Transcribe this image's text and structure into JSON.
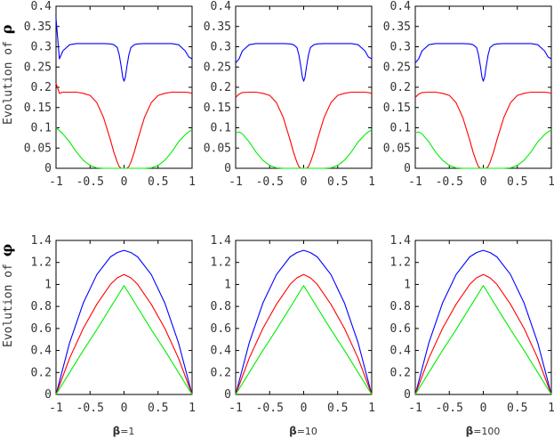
{
  "figure": {
    "row_labels": [
      {
        "prefix": "Evolution of ",
        "symbol": "ρ"
      },
      {
        "prefix": "Evolution of ",
        "symbol": "φ"
      }
    ],
    "column_labels": [
      {
        "symbol": "β",
        "value": "=1"
      },
      {
        "symbol": "β",
        "value": "=10"
      },
      {
        "symbol": "β",
        "value": "=100"
      }
    ],
    "colors": {
      "blue": "#0000ff",
      "red": "#ff0000",
      "green": "#00ee00",
      "frame": "#000000",
      "text": "#333333"
    }
  },
  "chart_data": [
    {
      "type": "line",
      "title": "",
      "xlabel": "",
      "ylabel": "Evolution of ρ",
      "xlim": [
        -1,
        1
      ],
      "ylim": [
        0,
        0.4
      ],
      "xticks": [
        "-1",
        "-0.5",
        "0",
        "0.5",
        "1"
      ],
      "yticks": [
        "0",
        "0.05",
        "0.1",
        "0.15",
        "0.2",
        "0.25",
        "0.3",
        "0.35",
        "0.4"
      ],
      "x": [
        -1,
        -0.95,
        -0.9,
        -0.8,
        -0.7,
        -0.6,
        -0.5,
        -0.4,
        -0.3,
        -0.2,
        -0.15,
        -0.1,
        -0.07,
        -0.04,
        -0.02,
        0,
        0.02,
        0.04,
        0.07,
        0.1,
        0.15,
        0.2,
        0.3,
        0.4,
        0.5,
        0.6,
        0.7,
        0.8,
        0.9,
        0.95,
        1
      ],
      "series": [
        {
          "color": "blue",
          "values": [
            0.37,
            0.27,
            0.29,
            0.305,
            0.308,
            0.308,
            0.308,
            0.308,
            0.308,
            0.307,
            0.305,
            0.298,
            0.28,
            0.25,
            0.225,
            0.215,
            0.225,
            0.25,
            0.28,
            0.298,
            0.305,
            0.307,
            0.308,
            0.308,
            0.308,
            0.308,
            0.308,
            0.305,
            0.29,
            0.275,
            0.27
          ]
        },
        {
          "color": "red",
          "values": [
            0.21,
            0.185,
            0.188,
            0.188,
            0.188,
            0.185,
            0.18,
            0.162,
            0.125,
            0.07,
            0.04,
            0.015,
            0.004,
            0,
            0,
            0,
            0,
            0,
            0.004,
            0.015,
            0.04,
            0.07,
            0.125,
            0.162,
            0.18,
            0.185,
            0.188,
            0.188,
            0.188,
            0.187,
            0.185
          ]
        },
        {
          "color": "green",
          "values": [
            0.1,
            0.093,
            0.085,
            0.065,
            0.04,
            0.02,
            0.007,
            0.001,
            0,
            0,
            0,
            0,
            0,
            0,
            0,
            0,
            0,
            0,
            0,
            0,
            0,
            0,
            0,
            0.001,
            0.007,
            0.02,
            0.04,
            0.065,
            0.083,
            0.09,
            0.095
          ]
        }
      ]
    },
    {
      "type": "line",
      "title": "",
      "xlabel": "",
      "ylabel": "",
      "xlim": [
        -1,
        1
      ],
      "ylim": [
        0,
        0.4
      ],
      "xticks": [
        "-1",
        "-0.5",
        "0",
        "0.5",
        "1"
      ],
      "yticks": [
        "0",
        "0.05",
        "0.1",
        "0.15",
        "0.2",
        "0.25",
        "0.3",
        "0.35",
        "0.4"
      ],
      "x": [
        -1,
        -0.95,
        -0.9,
        -0.8,
        -0.7,
        -0.6,
        -0.5,
        -0.4,
        -0.3,
        -0.2,
        -0.15,
        -0.1,
        -0.07,
        -0.04,
        -0.02,
        0,
        0.02,
        0.04,
        0.07,
        0.1,
        0.15,
        0.2,
        0.3,
        0.4,
        0.5,
        0.6,
        0.7,
        0.8,
        0.9,
        0.95,
        1
      ],
      "series": [
        {
          "color": "blue",
          "values": [
            0.26,
            0.27,
            0.29,
            0.305,
            0.308,
            0.308,
            0.308,
            0.308,
            0.308,
            0.307,
            0.305,
            0.298,
            0.28,
            0.25,
            0.225,
            0.215,
            0.225,
            0.25,
            0.28,
            0.298,
            0.305,
            0.307,
            0.308,
            0.308,
            0.308,
            0.308,
            0.308,
            0.305,
            0.29,
            0.275,
            0.27
          ]
        },
        {
          "color": "red",
          "values": [
            0.175,
            0.183,
            0.187,
            0.188,
            0.188,
            0.185,
            0.18,
            0.162,
            0.125,
            0.07,
            0.04,
            0.015,
            0.004,
            0,
            0,
            0,
            0,
            0,
            0.004,
            0.015,
            0.04,
            0.07,
            0.125,
            0.162,
            0.18,
            0.185,
            0.188,
            0.188,
            0.188,
            0.187,
            0.185
          ]
        },
        {
          "color": "green",
          "values": [
            0.087,
            0.09,
            0.085,
            0.065,
            0.04,
            0.02,
            0.007,
            0.001,
            0,
            0,
            0,
            0,
            0,
            0,
            0,
            0,
            0,
            0,
            0,
            0,
            0,
            0,
            0,
            0.001,
            0.007,
            0.02,
            0.04,
            0.065,
            0.083,
            0.09,
            0.095
          ]
        }
      ]
    },
    {
      "type": "line",
      "title": "",
      "xlabel": "",
      "ylabel": "",
      "xlim": [
        -1,
        1
      ],
      "ylim": [
        0,
        0.4
      ],
      "xticks": [
        "-1",
        "-0.5",
        "0",
        "0.5",
        "1"
      ],
      "yticks": [
        "0",
        "0.05",
        "0.1",
        "0.15",
        "0.2",
        "0.25",
        "0.3",
        "0.35",
        "0.4"
      ],
      "x": [
        -1,
        -0.95,
        -0.9,
        -0.8,
        -0.7,
        -0.6,
        -0.5,
        -0.4,
        -0.3,
        -0.2,
        -0.15,
        -0.1,
        -0.07,
        -0.04,
        -0.02,
        0,
        0.02,
        0.04,
        0.07,
        0.1,
        0.15,
        0.2,
        0.3,
        0.4,
        0.5,
        0.6,
        0.7,
        0.8,
        0.9,
        0.95,
        1
      ],
      "series": [
        {
          "color": "blue",
          "values": [
            0.26,
            0.27,
            0.29,
            0.305,
            0.308,
            0.308,
            0.308,
            0.308,
            0.308,
            0.307,
            0.305,
            0.298,
            0.28,
            0.25,
            0.225,
            0.215,
            0.225,
            0.25,
            0.28,
            0.298,
            0.305,
            0.307,
            0.308,
            0.308,
            0.308,
            0.308,
            0.308,
            0.305,
            0.29,
            0.275,
            0.27
          ]
        },
        {
          "color": "red",
          "values": [
            0.175,
            0.183,
            0.187,
            0.188,
            0.188,
            0.185,
            0.18,
            0.162,
            0.125,
            0.07,
            0.04,
            0.015,
            0.004,
            0,
            0,
            0,
            0,
            0,
            0.004,
            0.015,
            0.04,
            0.07,
            0.125,
            0.162,
            0.18,
            0.185,
            0.188,
            0.188,
            0.188,
            0.187,
            0.185
          ]
        },
        {
          "color": "green",
          "values": [
            0.087,
            0.09,
            0.085,
            0.065,
            0.04,
            0.02,
            0.007,
            0.001,
            0,
            0,
            0,
            0,
            0,
            0,
            0,
            0,
            0,
            0,
            0,
            0,
            0,
            0,
            0,
            0.001,
            0.007,
            0.02,
            0.04,
            0.065,
            0.083,
            0.09,
            0.095
          ]
        }
      ]
    },
    {
      "type": "line",
      "title": "",
      "xlabel": "β=1",
      "ylabel": "Evolution of φ",
      "xlim": [
        -1,
        1
      ],
      "ylim": [
        0,
        1.4
      ],
      "xticks": [
        "-1",
        "-0.5",
        "0",
        "0.5",
        "1"
      ],
      "yticks": [
        "0",
        "0.2",
        "0.4",
        "0.6",
        "0.8",
        "1",
        "1.2",
        "1.4"
      ],
      "x": [
        -1,
        -0.8,
        -0.6,
        -0.4,
        -0.2,
        -0.1,
        0,
        0.1,
        0.2,
        0.4,
        0.6,
        0.8,
        1
      ],
      "series": [
        {
          "color": "blue",
          "values": [
            0,
            0.47,
            0.83,
            1.09,
            1.25,
            1.29,
            1.31,
            1.29,
            1.25,
            1.09,
            0.83,
            0.47,
            0
          ]
        },
        {
          "color": "red",
          "values": [
            0,
            0.33,
            0.6,
            0.82,
            1.0,
            1.06,
            1.09,
            1.06,
            1.0,
            0.82,
            0.6,
            0.33,
            0
          ]
        },
        {
          "color": "green",
          "values": [
            0,
            0.2,
            0.4,
            0.59,
            0.79,
            0.89,
            0.99,
            0.89,
            0.79,
            0.59,
            0.4,
            0.2,
            0
          ]
        }
      ]
    },
    {
      "type": "line",
      "title": "",
      "xlabel": "β=10",
      "ylabel": "",
      "xlim": [
        -1,
        1
      ],
      "ylim": [
        0,
        1.4
      ],
      "xticks": [
        "-1",
        "-0.5",
        "0",
        "0.5",
        "1"
      ],
      "yticks": [
        "0",
        "0.2",
        "0.4",
        "0.6",
        "0.8",
        "1",
        "1.2",
        "1.4"
      ],
      "x": [
        -1,
        -0.8,
        -0.6,
        -0.4,
        -0.2,
        -0.1,
        0,
        0.1,
        0.2,
        0.4,
        0.6,
        0.8,
        1
      ],
      "series": [
        {
          "color": "blue",
          "values": [
            0,
            0.47,
            0.83,
            1.09,
            1.25,
            1.29,
            1.31,
            1.29,
            1.25,
            1.09,
            0.83,
            0.47,
            0
          ]
        },
        {
          "color": "red",
          "values": [
            0,
            0.33,
            0.6,
            0.82,
            1.0,
            1.06,
            1.09,
            1.06,
            1.0,
            0.82,
            0.6,
            0.33,
            0
          ]
        },
        {
          "color": "green",
          "values": [
            0,
            0.2,
            0.4,
            0.59,
            0.79,
            0.89,
            0.99,
            0.89,
            0.79,
            0.59,
            0.4,
            0.2,
            0
          ]
        }
      ]
    },
    {
      "type": "line",
      "title": "",
      "xlabel": "β=100",
      "ylabel": "",
      "xlim": [
        -1,
        1
      ],
      "ylim": [
        0,
        1.4
      ],
      "xticks": [
        "-1",
        "-0.5",
        "0",
        "0.5",
        "1"
      ],
      "yticks": [
        "0",
        "0.2",
        "0.4",
        "0.6",
        "0.8",
        "1",
        "1.2",
        "1.4"
      ],
      "x": [
        -1,
        -0.8,
        -0.6,
        -0.4,
        -0.2,
        -0.1,
        0,
        0.1,
        0.2,
        0.4,
        0.6,
        0.8,
        1
      ],
      "series": [
        {
          "color": "blue",
          "values": [
            0,
            0.47,
            0.83,
            1.09,
            1.25,
            1.29,
            1.31,
            1.29,
            1.25,
            1.09,
            0.83,
            0.47,
            0
          ]
        },
        {
          "color": "red",
          "values": [
            0,
            0.33,
            0.6,
            0.82,
            1.0,
            1.06,
            1.09,
            1.06,
            1.0,
            0.82,
            0.6,
            0.33,
            0
          ]
        },
        {
          "color": "green",
          "values": [
            0,
            0.2,
            0.4,
            0.59,
            0.79,
            0.89,
            0.99,
            0.89,
            0.79,
            0.59,
            0.4,
            0.2,
            0
          ]
        }
      ]
    }
  ]
}
